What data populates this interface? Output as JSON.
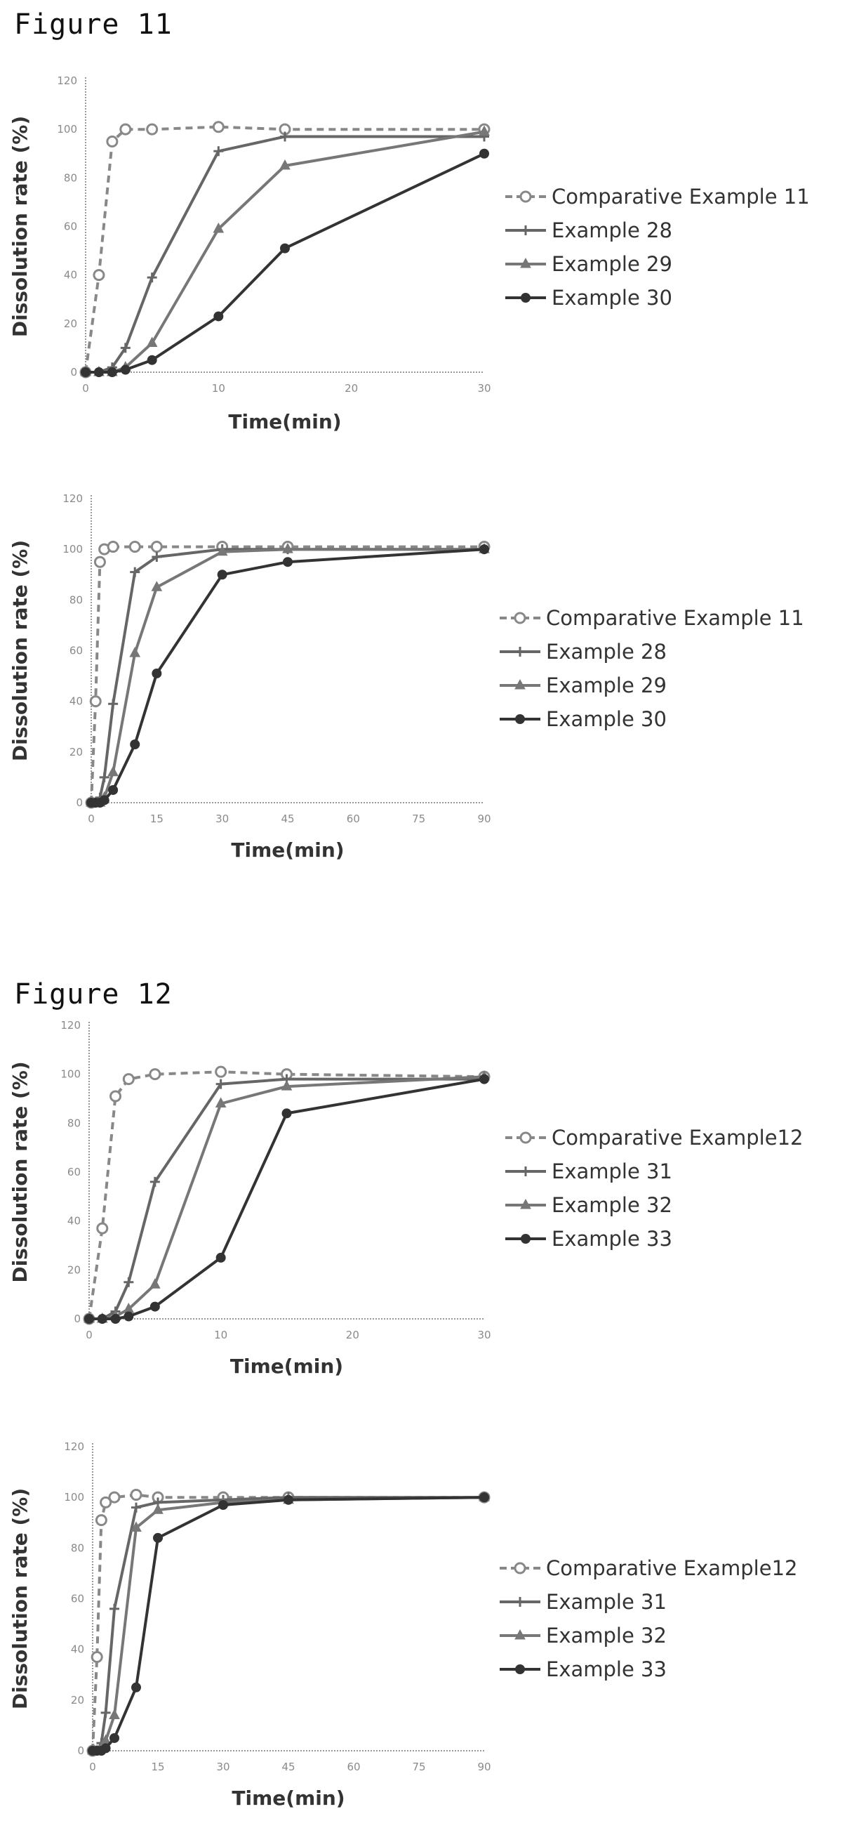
{
  "figures": [
    {
      "label": "Figure 11"
    },
    {
      "label": "Figure 12"
    }
  ],
  "colors": {
    "series": [
      "#888888",
      "#666666",
      "#777777",
      "#333333"
    ],
    "axis": "#999999"
  },
  "chart_data": [
    {
      "type": "line",
      "xlabel": "Time(min)",
      "ylabel": "Dissolution rate (%)",
      "xlim": [
        0,
        30
      ],
      "ylim": [
        0,
        120
      ],
      "xticks": [
        0,
        10,
        20,
        30
      ],
      "yticks": [
        0,
        20,
        40,
        60,
        80,
        100,
        120
      ],
      "series": [
        {
          "name": "Comparative Example 11",
          "x": [
            0,
            1,
            2,
            3,
            5,
            10,
            15,
            30
          ],
          "y": [
            0,
            40,
            95,
            100,
            100,
            101,
            100,
            100
          ]
        },
        {
          "name": "Example 28",
          "x": [
            0,
            1,
            2,
            3,
            5,
            10,
            15,
            30
          ],
          "y": [
            0,
            0,
            2,
            10,
            39,
            91,
            97,
            97
          ]
        },
        {
          "name": "Example 29",
          "x": [
            0,
            1,
            2,
            3,
            5,
            10,
            15,
            30
          ],
          "y": [
            0,
            0,
            0,
            2,
            12,
            59,
            85,
            99
          ]
        },
        {
          "name": "Example 30",
          "x": [
            0,
            1,
            2,
            3,
            5,
            10,
            15,
            30
          ],
          "y": [
            0,
            0,
            0,
            1,
            5,
            23,
            51,
            90
          ]
        }
      ]
    },
    {
      "type": "line",
      "xlabel": "Time(min)",
      "ylabel": "Dissolution rate (%)",
      "xlim": [
        0,
        90
      ],
      "ylim": [
        0,
        120
      ],
      "xticks": [
        0,
        15,
        30,
        45,
        60,
        75,
        90
      ],
      "yticks": [
        0,
        20,
        40,
        60,
        80,
        100,
        120
      ],
      "series": [
        {
          "name": "Comparative Example 11",
          "x": [
            0,
            1,
            2,
            3,
            5,
            10,
            15,
            30,
            45,
            90
          ],
          "y": [
            0,
            40,
            95,
            100,
            101,
            101,
            101,
            101,
            101,
            101
          ]
        },
        {
          "name": "Example 28",
          "x": [
            0,
            1,
            2,
            3,
            5,
            10,
            15,
            30,
            45,
            90
          ],
          "y": [
            0,
            0,
            2,
            10,
            39,
            91,
            97,
            100,
            100,
            100
          ]
        },
        {
          "name": "Example 29",
          "x": [
            0,
            1,
            2,
            3,
            5,
            10,
            15,
            30,
            45,
            90
          ],
          "y": [
            0,
            0,
            0,
            2,
            12,
            59,
            85,
            99,
            100,
            100
          ]
        },
        {
          "name": "Example 30",
          "x": [
            0,
            1,
            2,
            3,
            5,
            10,
            15,
            30,
            45,
            90
          ],
          "y": [
            0,
            0,
            0,
            1,
            5,
            23,
            51,
            90,
            95,
            100
          ]
        }
      ]
    },
    {
      "type": "line",
      "xlabel": "Time(min)",
      "ylabel": "Dissolution rate (%)",
      "xlim": [
        0,
        30
      ],
      "ylim": [
        0,
        120
      ],
      "xticks": [
        0,
        10,
        20,
        30
      ],
      "yticks": [
        0,
        20,
        40,
        60,
        80,
        100,
        120
      ],
      "series": [
        {
          "name": "Comparative Example12",
          "x": [
            0,
            1,
            2,
            3,
            5,
            10,
            15,
            30
          ],
          "y": [
            0,
            37,
            91,
            98,
            100,
            101,
            100,
            99
          ]
        },
        {
          "name": "Example 31",
          "x": [
            0,
            1,
            2,
            3,
            5,
            10,
            15,
            30
          ],
          "y": [
            0,
            0,
            3,
            15,
            56,
            96,
            98,
            98
          ]
        },
        {
          "name": "Example 32",
          "x": [
            0,
            1,
            2,
            3,
            5,
            10,
            15,
            30
          ],
          "y": [
            0,
            0,
            1,
            4,
            14,
            88,
            95,
            99
          ]
        },
        {
          "name": "Example 33",
          "x": [
            0,
            1,
            2,
            3,
            5,
            10,
            15,
            30
          ],
          "y": [
            0,
            0,
            0,
            1,
            5,
            25,
            84,
            98
          ]
        }
      ]
    },
    {
      "type": "line",
      "xlabel": "Time(min)",
      "ylabel": "Dissolution rate (%)",
      "xlim": [
        0,
        90
      ],
      "ylim": [
        0,
        120
      ],
      "xticks": [
        0,
        15,
        30,
        45,
        60,
        75,
        90
      ],
      "yticks": [
        0,
        20,
        40,
        60,
        80,
        100,
        120
      ],
      "series": [
        {
          "name": "Comparative Example12",
          "x": [
            0,
            1,
            2,
            3,
            5,
            10,
            15,
            30,
            45,
            90
          ],
          "y": [
            0,
            37,
            91,
            98,
            100,
            101,
            100,
            100,
            100,
            100
          ]
        },
        {
          "name": "Example 31",
          "x": [
            0,
            1,
            2,
            3,
            5,
            10,
            15,
            30,
            45,
            90
          ],
          "y": [
            0,
            0,
            3,
            15,
            56,
            96,
            98,
            99,
            100,
            100
          ]
        },
        {
          "name": "Example 32",
          "x": [
            0,
            1,
            2,
            3,
            5,
            10,
            15,
            30,
            45,
            90
          ],
          "y": [
            0,
            0,
            1,
            4,
            14,
            88,
            95,
            98,
            99,
            100
          ]
        },
        {
          "name": "Example 33",
          "x": [
            0,
            1,
            2,
            3,
            5,
            10,
            15,
            30,
            45,
            90
          ],
          "y": [
            0,
            0,
            0,
            1,
            5,
            25,
            84,
            97,
            99,
            100
          ]
        }
      ]
    }
  ]
}
